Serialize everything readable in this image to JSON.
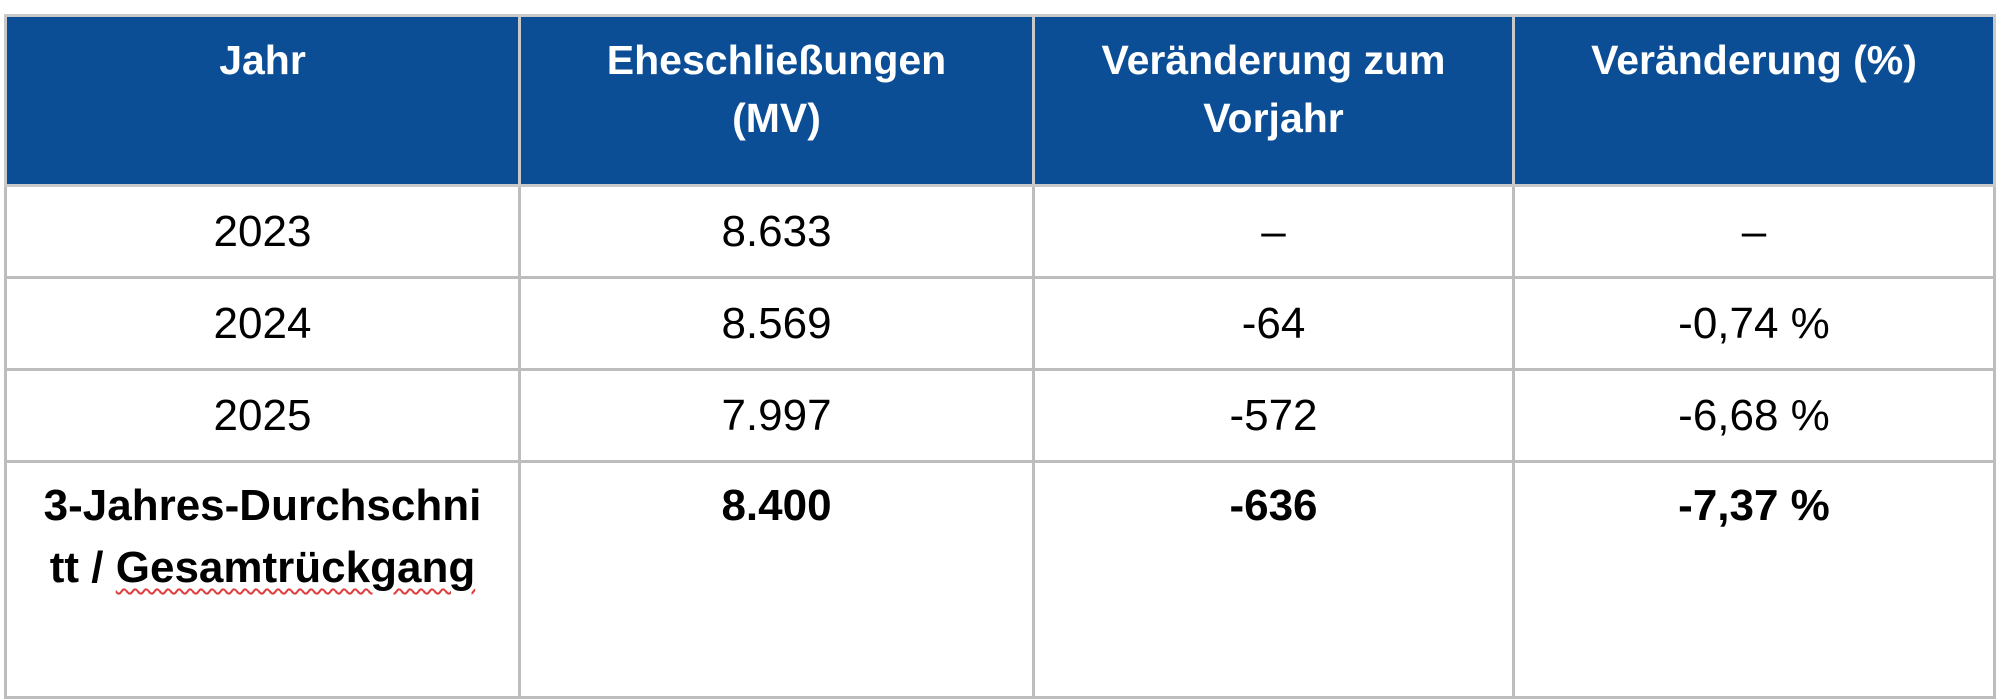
{
  "table": {
    "headers": [
      "Jahr",
      "Eheschließungen (MV)",
      "Veränderung zum Vorjahr",
      "Veränderung (%)"
    ],
    "rows": [
      [
        "2023",
        "8.633",
        "–",
        "–"
      ],
      [
        "2024",
        "8.569",
        "-64",
        "-0,74 %"
      ],
      [
        "2025",
        "7.997",
        "-572",
        "-6,68 %"
      ]
    ],
    "total": {
      "label_part1": "3-Jahres-Durchschnitt / ",
      "label_part2": "Gesamtrückgang",
      "value": "8.400",
      "change": "-636",
      "percent": "-7,37 %"
    }
  },
  "colors": {
    "header_background": "#0b4e96",
    "header_text": "#ffffff",
    "grid": "#bdbdbd",
    "spellcheck_underline": "#e03c3c"
  }
}
